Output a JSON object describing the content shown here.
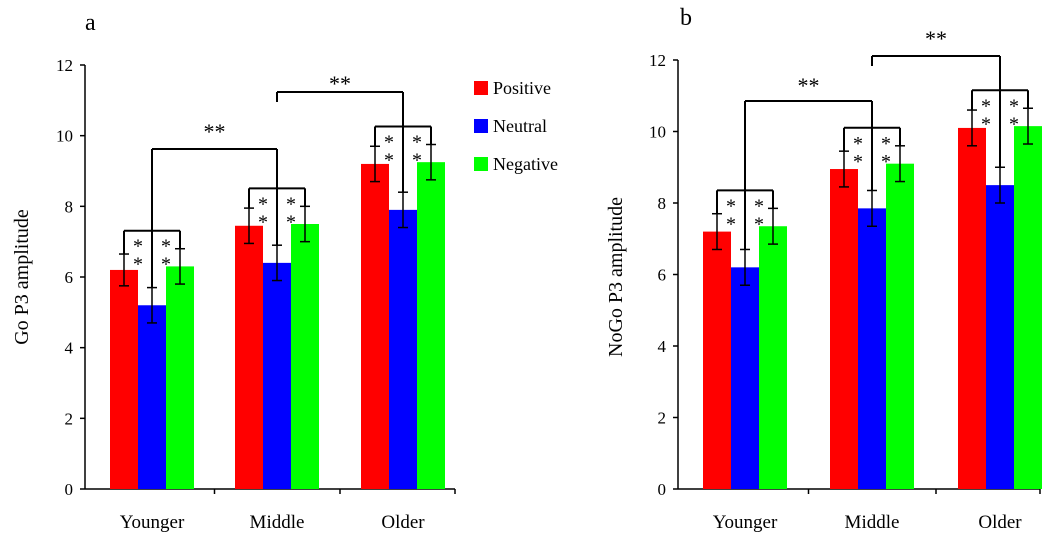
{
  "legend": [
    {
      "label": "Positive",
      "color": "#ff0000"
    },
    {
      "label": "Neutral",
      "color": "#0000ff"
    },
    {
      "label": "Negative",
      "color": "#00ff00"
    }
  ],
  "significance_marker": "**",
  "chart_data": [
    {
      "panel_label": "a",
      "type": "bar",
      "ylabel": "Go P3 amplitude",
      "xlabel": "",
      "ylim": [
        0,
        12
      ],
      "yticks": [
        0,
        2,
        4,
        6,
        8,
        10,
        12
      ],
      "categories": [
        "Younger",
        "Middle",
        "Older"
      ],
      "series": [
        {
          "name": "Positive",
          "color": "#ff0000",
          "values": [
            6.2,
            7.45,
            9.2
          ],
          "errors": [
            0.45,
            0.5,
            0.5
          ]
        },
        {
          "name": "Neutral",
          "color": "#0000ff",
          "values": [
            5.2,
            6.4,
            7.9
          ],
          "errors": [
            0.5,
            0.5,
            0.5
          ]
        },
        {
          "name": "Negative",
          "color": "#00ff00",
          "values": [
            6.3,
            7.5,
            9.25
          ],
          "errors": [
            0.5,
            0.5,
            0.5
          ]
        }
      ],
      "within_group_significance": [
        "**",
        "**",
        "**"
      ],
      "between_group_significance": [
        {
          "from": "Younger",
          "to": "Middle",
          "label": "**"
        },
        {
          "from": "Middle",
          "to": "Older",
          "label": "**"
        }
      ]
    },
    {
      "panel_label": "b",
      "type": "bar",
      "ylabel": "NoGo P3 amplitude",
      "xlabel": "",
      "ylim": [
        0,
        12
      ],
      "yticks": [
        0,
        2,
        4,
        6,
        8,
        10,
        12
      ],
      "categories": [
        "Younger",
        "Middle",
        "Older"
      ],
      "series": [
        {
          "name": "Positive",
          "color": "#ff0000",
          "values": [
            7.2,
            8.95,
            10.1
          ],
          "errors": [
            0.5,
            0.5,
            0.5
          ]
        },
        {
          "name": "Neutral",
          "color": "#0000ff",
          "values": [
            6.2,
            7.85,
            8.5
          ],
          "errors": [
            0.5,
            0.5,
            0.5
          ]
        },
        {
          "name": "Negative",
          "color": "#00ff00",
          "values": [
            7.35,
            9.1,
            10.15
          ],
          "errors": [
            0.5,
            0.5,
            0.5
          ]
        }
      ],
      "within_group_significance": [
        "**",
        "**",
        "**"
      ],
      "between_group_significance": [
        {
          "from": "Younger",
          "to": "Middle",
          "label": "**"
        },
        {
          "from": "Middle",
          "to": "Older",
          "label": "**"
        }
      ]
    }
  ]
}
